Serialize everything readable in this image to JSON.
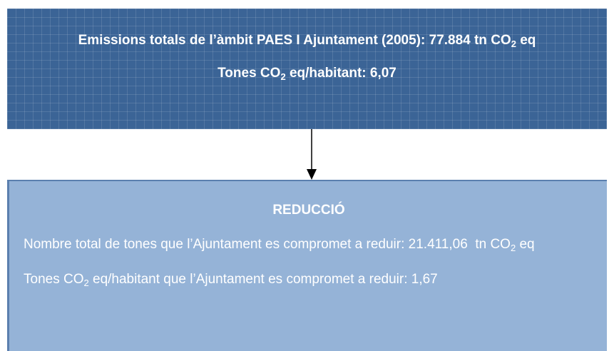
{
  "top": {
    "total": [
      "Emissions totals de l’àmbit PAES I Ajuntament (2005): 77.884 tn CO",
      "2",
      " eq"
    ],
    "per_habitant": [
      "Tones CO",
      "2",
      " eq/habitant: 6,07"
    ]
  },
  "bottom": {
    "heading": "REDUCCIÓ",
    "total": [
      "Nombre total de tones que l’Ajuntament es compromet a reduir: 21.411,06  tn CO",
      "2",
      " eq"
    ],
    "per_habitant": [
      "Tones CO",
      "2",
      " eq/habitant que l’Ajuntament es compromet a reduir: 1,67"
    ]
  }
}
